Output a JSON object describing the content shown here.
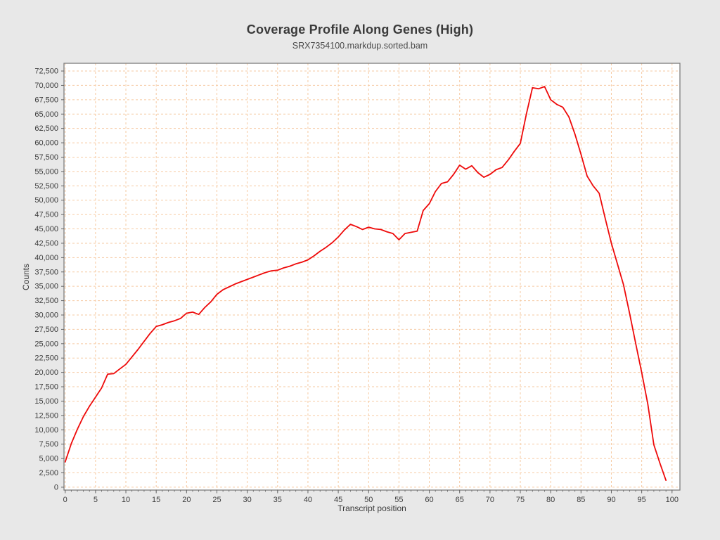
{
  "title": "Coverage Profile Along Genes (High)",
  "subtitle": "SRX7354100.markdup.sorted.bam",
  "chart_data": {
    "type": "line",
    "title": "Coverage Profile Along Genes (High)",
    "subtitle": "SRX7354100.markdup.sorted.bam",
    "xlabel": "Transcript position",
    "ylabel": "Counts",
    "x": [
      0,
      1,
      2,
      3,
      4,
      5,
      6,
      7,
      8,
      9,
      10,
      11,
      12,
      13,
      14,
      15,
      16,
      17,
      18,
      19,
      20,
      21,
      22,
      23,
      24,
      25,
      26,
      27,
      28,
      29,
      30,
      31,
      32,
      33,
      34,
      35,
      36,
      37,
      38,
      39,
      40,
      41,
      42,
      43,
      44,
      45,
      46,
      47,
      48,
      49,
      50,
      51,
      52,
      53,
      54,
      55,
      56,
      57,
      58,
      59,
      60,
      61,
      62,
      63,
      64,
      65,
      66,
      67,
      68,
      69,
      70,
      71,
      72,
      73,
      74,
      75,
      76,
      77,
      78,
      79,
      80,
      81,
      82,
      83,
      84,
      85,
      86,
      87,
      88,
      89,
      90,
      91,
      92,
      93,
      94,
      95,
      96,
      97,
      98,
      99
    ],
    "values": [
      4400,
      7600,
      10100,
      12300,
      14100,
      15700,
      17300,
      19700,
      19800,
      20600,
      21400,
      22700,
      24000,
      25400,
      26800,
      28000,
      28300,
      28700,
      29000,
      29400,
      30300,
      30500,
      30100,
      31300,
      32300,
      33600,
      34400,
      34900,
      35400,
      35800,
      36200,
      36600,
      37000,
      37400,
      37700,
      37800,
      38200,
      38500,
      38900,
      39200,
      39600,
      40300,
      41100,
      41800,
      42600,
      43600,
      44800,
      45800,
      45400,
      44900,
      45300,
      45000,
      44900,
      44500,
      44200,
      43100,
      44200,
      44400,
      44600,
      48200,
      49400,
      51500,
      52900,
      53200,
      54500,
      56100,
      55400,
      56000,
      54800,
      54000,
      54500,
      55300,
      55700,
      57000,
      58500,
      59900,
      65000,
      69600,
      69400,
      69800,
      67500,
      66700,
      66200,
      64500,
      61500,
      58000,
      54200,
      52500,
      51200,
      46800,
      42500,
      38900,
      35300,
      30300,
      25100,
      20000,
      14500,
      7400,
      4200,
      1200
    ],
    "x_ticks": [
      0,
      5,
      10,
      15,
      20,
      25,
      30,
      35,
      40,
      45,
      50,
      55,
      60,
      65,
      70,
      75,
      80,
      85,
      90,
      95,
      100
    ],
    "y_ticks": [
      0,
      2500,
      5000,
      7500,
      10000,
      12500,
      15000,
      17500,
      20000,
      22500,
      25000,
      27500,
      30000,
      32500,
      35000,
      37500,
      40000,
      42500,
      45000,
      47500,
      50000,
      52500,
      55000,
      57500,
      60000,
      62500,
      65000,
      67500,
      70000,
      72500
    ],
    "xlim": [
      -0.2,
      101.3
    ],
    "ylim": [
      -500,
      73850
    ],
    "grid": true,
    "legend": "none",
    "series_color": "#ee0a0a",
    "grid_color": "#f6caa2",
    "axis_color": "#7d7d7d",
    "tick_color": "#666666",
    "background": "#e8e8e8",
    "plot_background": "#ffffff"
  }
}
